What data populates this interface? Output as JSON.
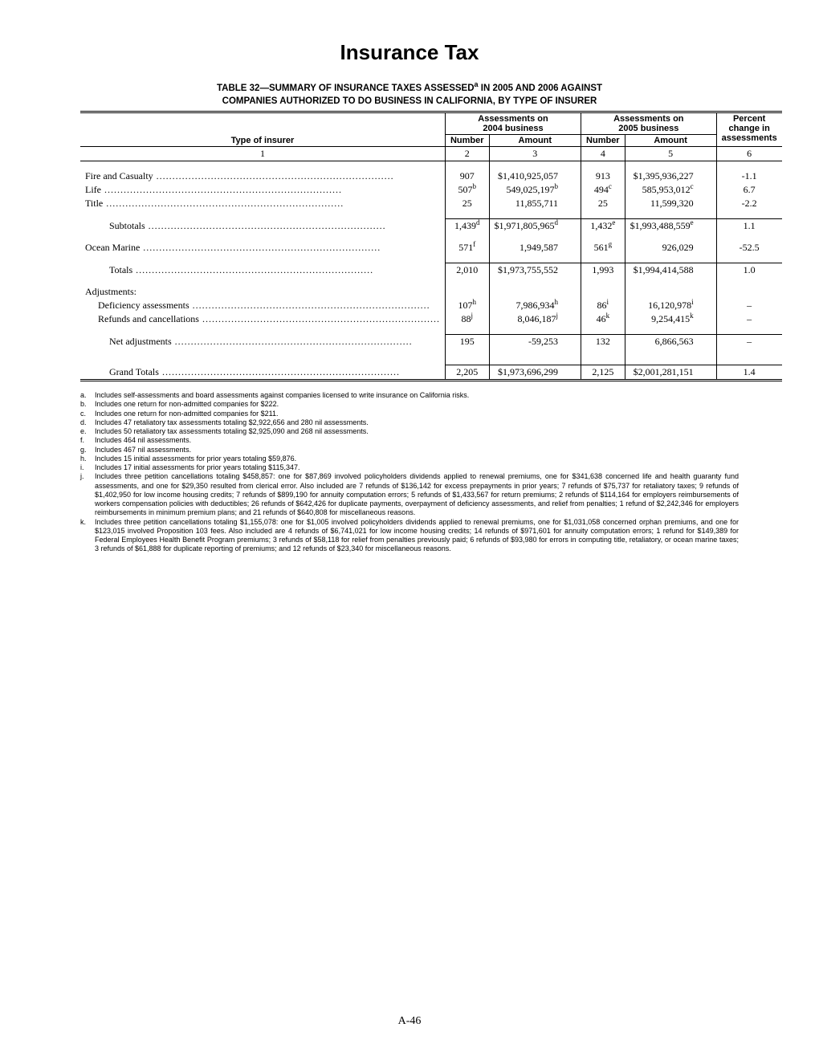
{
  "page_title": "Insurance Tax",
  "table_title_line1": "TABLE 32—SUMMARY OF INSURANCE TAXES ASSESSED",
  "table_title_sup": "a",
  "table_title_line1b": " IN 2005 AND 2006 AGAINST",
  "table_title_line2": "COMPANIES AUTHORIZED TO DO BUSINESS IN CALIFORNIA, BY TYPE OF INSURER",
  "headers": {
    "assess_2004": "Assessments on\n2004 business",
    "assess_2005": "Assessments on\n2005 business",
    "percent_change": "Percent\nchange in\nassessments",
    "type_of_insurer": "Type of insurer",
    "number": "Number",
    "amount": "Amount"
  },
  "colnums": [
    "1",
    "2",
    "3",
    "4",
    "5",
    "6"
  ],
  "rows": [
    {
      "kind": "data",
      "label": "Fire and Casualty",
      "n1": "907",
      "n1s": "",
      "a1": "$1,410,925,057",
      "a1s": "",
      "n2": "913",
      "n2s": "",
      "a2": "$1,395,936,227",
      "a2s": "",
      "pct": "-1.1"
    },
    {
      "kind": "data",
      "label": "Life",
      "n1": "507",
      "n1s": "b",
      "a1": "549,025,197",
      "a1s": "b",
      "n2": "494",
      "n2s": "c",
      "a2": "585,953,012",
      "a2s": "c",
      "pct": "6.7"
    },
    {
      "kind": "data",
      "label": "Title",
      "n1": "25",
      "n1s": "",
      "a1": "11,855,711",
      "a1s": "",
      "n2": "25",
      "n2s": "",
      "a2": "11,599,320",
      "a2s": "",
      "pct": "-2.2"
    },
    {
      "kind": "subtotal",
      "label": "Subtotals",
      "n1": "1,439",
      "n1s": "d",
      "a1": "$1,971,805,965",
      "a1s": "d",
      "n2": "1,432",
      "n2s": "e",
      "a2": "$1,993,488,559",
      "a2s": "e",
      "pct": "1.1"
    },
    {
      "kind": "data",
      "label": "Ocean Marine",
      "n1": "571",
      "n1s": "f",
      "a1": "1,949,587",
      "a1s": "",
      "n2": "561",
      "n2s": "g",
      "a2": "926,029",
      "a2s": "",
      "pct": "-52.5"
    },
    {
      "kind": "subtotal",
      "label": "Totals",
      "n1": "2,010",
      "n1s": "",
      "a1": "$1,973,755,552",
      "a1s": "",
      "n2": "1,993",
      "n2s": "",
      "a2": "$1,994,414,588",
      "a2s": "",
      "pct": "1.0"
    },
    {
      "kind": "section",
      "label": "Adjustments:"
    },
    {
      "kind": "adj",
      "label": "Deficiency assessments",
      "n1": "107",
      "n1s": "h",
      "a1": "7,986,934",
      "a1s": "h",
      "n2": "86",
      "n2s": "i",
      "a2": "16,120,978",
      "a2s": "i",
      "pct": "–"
    },
    {
      "kind": "adj",
      "label": "Refunds and cancellations",
      "n1": "88",
      "n1s": "j",
      "a1": "8,046,187",
      "a1s": "j",
      "n2": "46",
      "n2s": "k",
      "a2": "9,254,415",
      "a2s": "k",
      "pct": "–"
    },
    {
      "kind": "subtotal",
      "label": "Net adjustments",
      "indent": "indent1",
      "n1": "195",
      "n1s": "",
      "a1": "-59,253",
      "a1s": "",
      "n2": "132",
      "n2s": "",
      "a2": "6,866,563",
      "a2s": "",
      "pct": "–"
    },
    {
      "kind": "grand",
      "label": "Grand Totals",
      "n1": "2,205",
      "n1s": "",
      "a1": "$1,973,696,299",
      "a1s": "",
      "n2": "2,125",
      "n2s": "",
      "a2": "$2,001,281,151",
      "a2s": "",
      "pct": "1.4"
    }
  ],
  "footnotes": [
    {
      "k": "a.",
      "t": "Includes self-assessments and board assessments against companies licensed to write insurance on California risks."
    },
    {
      "k": "b.",
      "t": "Includes one return for non-admitted companies for $222."
    },
    {
      "k": "c.",
      "t": "Includes one return for non-admitted companies for $211."
    },
    {
      "k": "d.",
      "t": "Includes 47 retaliatory tax assessments totaling $2,922,656 and 280 nil assessments."
    },
    {
      "k": "e.",
      "t": "Includes 50 retaliatory tax assessments totaling $2,925,090 and 268 nil assessments."
    },
    {
      "k": "f.",
      "t": "Includes 464 nil assessments."
    },
    {
      "k": "g.",
      "t": "Includes 467 nil assessments."
    },
    {
      "k": "h.",
      "t": "Includes 15 initial assessments for prior years totaling $59,876."
    },
    {
      "k": "i.",
      "t": "Includes 17 initial assessments for prior years totaling $115,347."
    },
    {
      "k": "j.",
      "t": "Includes three petition cancellations totaling $458,857: one for $87,869 involved policyholders dividends applied to renewal premiums, one for $341,638 concerned life and health guaranty fund assessments, and one for $29,350 resulted from clerical error. Also included are 7 refunds of $136,142 for excess prepayments in prior years; 7 refunds of $75,737 for retaliatory taxes; 9 refunds of $1,402,950 for low income housing credits; 7 refunds of $899,190 for annuity computation errors; 5 refunds of $1,433,567 for return premiums; 2 refunds of $114,164 for employers reimbursements of workers compensation policies with deductibles; 26 refunds of $642,426 for duplicate payments, overpayment of deficiency assessments, and relief from penalties; 1 refund of $2,242,346 for employers reimbursements in minimum premium plans; and 21 refunds of $640,808 for miscellaneous reasons."
    },
    {
      "k": "k.",
      "t": "Includes three petition cancellations totaling $1,155,078: one for $1,005 involved policyholders dividends applied to renewal premiums, one for $1,031,058 concerned orphan premiums, and one for $123,015 involved Proposition 103 fees. Also included are 4 refunds of $6,741,021 for low income housing credits; 14 refunds of $971,601 for annuity computation errors; 1 refund for $149,389 for Federal Employees Health Benefit Program premiums; 3 refunds of $58,118 for relief from penalties previously paid; 6 refunds of $93,980 for errors in computing title, retaliatory, or ocean marine taxes; 3 refunds of $61,888 for duplicate reporting of premiums; and 12 refunds of $23,340 for miscellaneous reasons."
    }
  ],
  "page_number": "A-46",
  "columns_widths": [
    "24%",
    "11%",
    "20%",
    "11%",
    "20%",
    "14%"
  ]
}
